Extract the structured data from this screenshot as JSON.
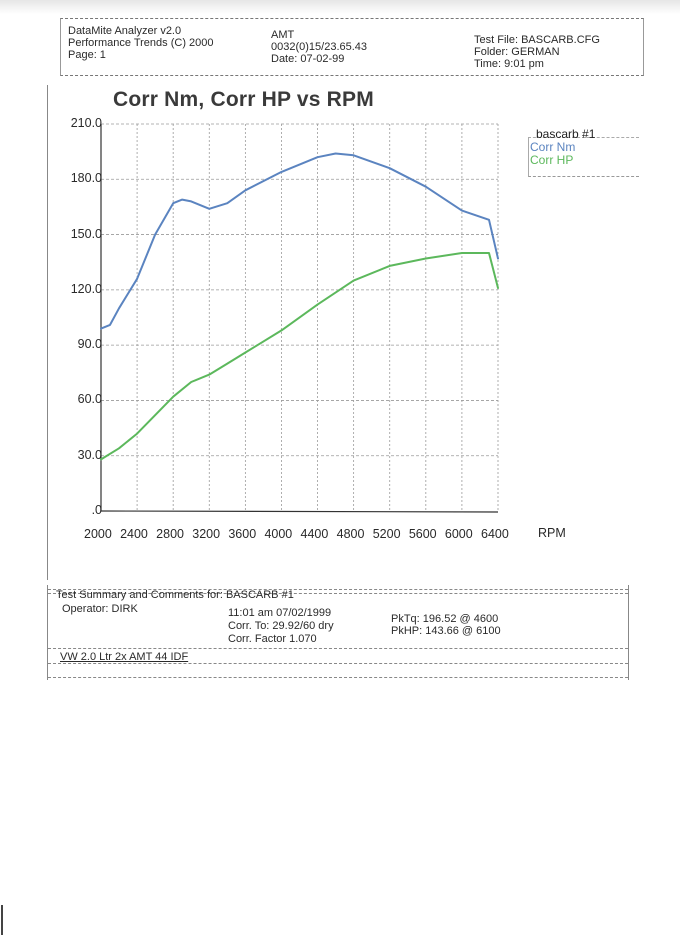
{
  "header": {
    "app_name": "DataMite Analyzer v2.0",
    "vendor": "Performance Trends (C) 2000",
    "page": "Page:  1",
    "engine_name": "AMT",
    "engine_code": "0032(0)15/23.65.43",
    "date": "Date: 07-02-99",
    "test_file": "Test File: BASCARB.CFG",
    "folder": "Folder: GERMAN",
    "time": "Time: 9:01 pm"
  },
  "legend": {
    "title": "bascarb   #1",
    "items": [
      {
        "label": "Corr Nm",
        "color": "#5b84c0"
      },
      {
        "label": "Corr HP",
        "color": "#5cb85c"
      }
    ]
  },
  "summary": {
    "heading": "Test Summary and Comments for:   BASCARB  #1",
    "operator": "Operator: DIRK",
    "timestamp": "11:01 am 07/02/1999",
    "corr_to": "Corr. To: 29.92/60 dry",
    "corr_factor": "Corr. Factor 1.070",
    "peak_torque": "PkTq: 196.52 @  4600",
    "peak_hp": "PkHP: 143.66 @  6100",
    "comment": "VW 2.0 Ltr 2x AMT 44 IDF"
  },
  "chart_data": {
    "type": "line",
    "title": "Corr Nm, Corr HP vs RPM",
    "xlabel": "RPM",
    "ylabel": "",
    "xlim": [
      2000,
      6400
    ],
    "ylim": [
      0,
      210
    ],
    "grid": true,
    "legend_position": "right-top",
    "x_ticks": [
      "2000",
      "2400",
      "2800",
      "3200",
      "3600",
      "4000",
      "4400",
      "4800",
      "5200",
      "5600",
      "6000",
      "6400"
    ],
    "y_ticks": [
      ".0",
      "30.0",
      "60.0",
      "90.0",
      "120.0",
      "150.0",
      "180.0",
      "210.0"
    ],
    "series": [
      {
        "name": "Corr Nm",
        "color": "#5b84c0",
        "x": [
          2000,
          2100,
          2200,
          2400,
          2600,
          2800,
          2900,
          3000,
          3200,
          3400,
          3600,
          4000,
          4400,
          4600,
          4800,
          5200,
          5600,
          6000,
          6300,
          6400
        ],
        "values": [
          99,
          101,
          110,
          126,
          150,
          167,
          169,
          168,
          164,
          167,
          174,
          184,
          192,
          194,
          193,
          186,
          176,
          163,
          158,
          137
        ]
      },
      {
        "name": "Corr HP",
        "color": "#5cb85c",
        "x": [
          2000,
          2200,
          2400,
          2600,
          2800,
          3000,
          3200,
          3400,
          3600,
          4000,
          4400,
          4800,
          5200,
          5600,
          6000,
          6300,
          6400
        ],
        "values": [
          28,
          34,
          42,
          52,
          62,
          70,
          74,
          80,
          86,
          98,
          112,
          125,
          133,
          137,
          140,
          140,
          121
        ]
      }
    ]
  }
}
